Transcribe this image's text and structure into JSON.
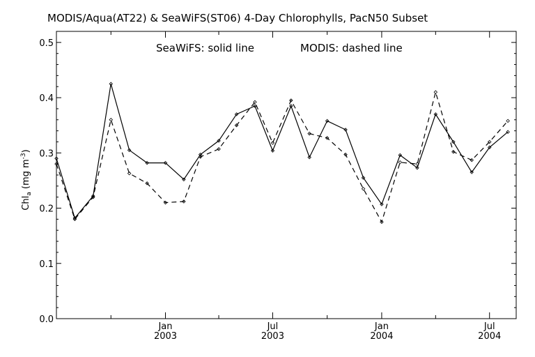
{
  "chart_data": {
    "type": "line",
    "title": "MODIS/Aqua(AT22) & SeaWiFS(ST06) 4-Day Chlorophylls, PacN50 Subset",
    "annotation_solid": "SeaWiFS: solid line",
    "annotation_dashed": "MODIS: dashed line",
    "ylabel": {
      "base": "Chl",
      "sub": "a",
      "unit_pre": " (mg m",
      "unit_sup": "-3",
      "unit_post": ")"
    },
    "ylim": [
      0,
      0.52
    ],
    "yticks": [
      {
        "value": 0.0,
        "label": "0.0"
      },
      {
        "value": 0.1,
        "label": "0.1"
      },
      {
        "value": 0.2,
        "label": "0.2"
      },
      {
        "value": 0.3,
        "label": "0.3"
      },
      {
        "value": 0.4,
        "label": "0.4"
      },
      {
        "value": 0.5,
        "label": "0.5"
      }
    ],
    "xlim": [
      "2002-07-01",
      "2004-08-15"
    ],
    "xticks": [
      {
        "date": "2003-01-01",
        "label1": "Jan",
        "label2": "2003"
      },
      {
        "date": "2003-07-01",
        "label1": "Jul",
        "label2": "2003"
      },
      {
        "date": "2004-01-01",
        "label1": "Jan",
        "label2": "2004"
      },
      {
        "date": "2004-07-01",
        "label1": "Jul",
        "label2": "2004"
      }
    ],
    "minor_ticks": [
      "2002-10-01",
      "2003-04-01",
      "2003-10-01",
      "2004-04-01"
    ],
    "x": [
      "2002-07-01",
      "2002-08-01",
      "2002-09-01",
      "2002-10-01",
      "2002-11-01",
      "2002-12-01",
      "2003-01-01",
      "2003-02-01",
      "2003-03-01",
      "2003-04-01",
      "2003-05-01",
      "2003-06-01",
      "2003-07-01",
      "2003-08-01",
      "2003-09-01",
      "2003-10-01",
      "2003-11-01",
      "2003-12-01",
      "2004-01-01",
      "2004-02-01",
      "2004-03-01",
      "2004-04-01",
      "2004-05-01",
      "2004-06-01",
      "2004-07-01",
      "2004-08-01"
    ],
    "series": [
      {
        "name": "SeaWiFS",
        "dash": false,
        "values": [
          0.29,
          0.182,
          0.222,
          0.425,
          0.305,
          0.282,
          0.282,
          0.252,
          0.297,
          0.322,
          0.37,
          0.385,
          0.304,
          0.385,
          0.292,
          0.358,
          0.342,
          0.255,
          0.207,
          0.296,
          0.273,
          0.37,
          0.32,
          0.265,
          0.31,
          0.338
        ]
      },
      {
        "name": "MODIS",
        "dash": true,
        "values": [
          0.28,
          0.18,
          0.22,
          0.36,
          0.263,
          0.245,
          0.21,
          0.212,
          0.293,
          0.307,
          0.35,
          0.392,
          0.318,
          0.395,
          0.335,
          0.327,
          0.297,
          0.235,
          0.175,
          0.283,
          0.28,
          0.41,
          0.302,
          0.287,
          0.32,
          0.358
        ]
      }
    ],
    "grid": false,
    "line_color": "#000000"
  }
}
